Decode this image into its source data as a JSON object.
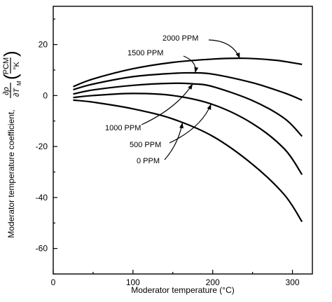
{
  "chart_data": {
    "type": "line",
    "xlabel": "Moderator temperature (°C)",
    "ylabel_text": "Moderator temperature coefficient,",
    "ylabel_partial": {
      "numerator": "∂ρ",
      "denominator": "∂T",
      "subscript": "M"
    },
    "ylabel_units": {
      "numerator": "PCM",
      "denominator": "°K"
    },
    "xlim": [
      0,
      325
    ],
    "ylim": [
      -70,
      35
    ],
    "xticks": [
      0,
      100,
      200,
      300
    ],
    "yticks": [
      20,
      0,
      -20,
      -40,
      -60
    ],
    "grid": false,
    "series": [
      {
        "name": "2000 PPM",
        "x": [
          25,
          50,
          100,
          150,
          200,
          240,
          280,
          312
        ],
        "y": [
          3.5,
          6.5,
          10.5,
          13.0,
          14.3,
          14.6,
          13.8,
          12.2
        ],
        "label_anchor": [
          234,
          14.5
        ]
      },
      {
        "name": "1500 PPM",
        "x": [
          25,
          50,
          100,
          150,
          175,
          200,
          250,
          290,
          312
        ],
        "y": [
          2.3,
          4.5,
          7.4,
          8.7,
          8.9,
          8.4,
          5.0,
          1.0,
          -1.8
        ],
        "label_anchor": [
          178,
          8.9
        ]
      },
      {
        "name": "1000 PPM",
        "x": [
          25,
          50,
          100,
          150,
          175,
          200,
          250,
          290,
          312
        ],
        "y": [
          0.6,
          2.2,
          4.0,
          4.8,
          4.6,
          3.5,
          -2.0,
          -9.0,
          -16.0
        ],
        "label_anchor": [
          175,
          4.6
        ]
      },
      {
        "name": "500 PPM",
        "x": [
          25,
          50,
          100,
          150,
          200,
          250,
          290,
          312
        ],
        "y": [
          -0.8,
          0.0,
          0.8,
          0.0,
          -3.5,
          -11.0,
          -21.0,
          -31.0
        ],
        "label_anchor": [
          198,
          -3.3
        ]
      },
      {
        "name": "0 PPM",
        "x": [
          25,
          50,
          100,
          150,
          200,
          250,
          290,
          312
        ],
        "y": [
          -1.8,
          -2.6,
          -5.2,
          -9.2,
          -16.0,
          -27.0,
          -39.0,
          -49.5
        ],
        "label_anchor": [
          162,
          -10.6
        ]
      }
    ]
  }
}
